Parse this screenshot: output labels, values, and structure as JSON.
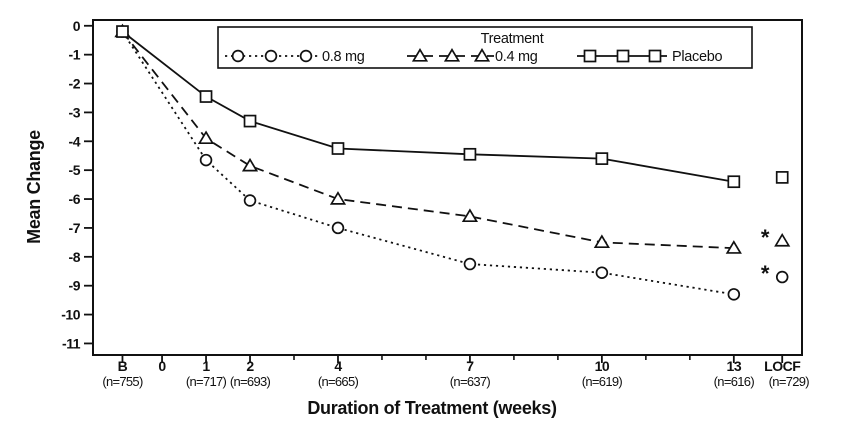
{
  "chart_data": {
    "type": "line",
    "title": "",
    "xlabel": "Duration of Treatment (weeks)",
    "ylabel": "Mean Change",
    "background": "#ffffff",
    "line_color": "#000000",
    "grid": false,
    "ylim": [
      -11.4,
      0.2
    ],
    "y_ticks": [
      0,
      -1,
      -2,
      -3,
      -4,
      -5,
      -6,
      -7,
      -8,
      -9,
      -10,
      -11
    ],
    "x_tick_labels": [
      "B",
      "0",
      "1",
      "2",
      "4",
      "7",
      "10",
      "13",
      "LOCF"
    ],
    "x_tick_weeks": [
      -0.9,
      0,
      1,
      2,
      4,
      7,
      10,
      13,
      14.1
    ],
    "x_minor_tick_weeks": [
      3,
      5,
      6,
      8,
      9,
      11,
      12
    ],
    "n_labels": [
      "(n=755)",
      "(n=717)",
      "(n=693)",
      "(n=665)",
      "(n=637)",
      "(n=619)",
      "(n=616)",
      "(n=729)"
    ],
    "n_label_weeks": [
      -0.9,
      1,
      2,
      4,
      7,
      10,
      13,
      14.25
    ],
    "asterisk_glyph": "*",
    "legend": {
      "title": "Treatment",
      "position": "top-center",
      "entries": [
        "0.8 mg",
        "0.4 mg",
        "Placebo"
      ]
    },
    "series": [
      {
        "name": "0.8 mg",
        "marker": "circle",
        "line_style": "dotted",
        "dash": "2.2,3.8",
        "x_labels": [
          "B",
          "1",
          "2",
          "4",
          "7",
          "10",
          "13"
        ],
        "weeks": [
          -0.9,
          1,
          2,
          4,
          7,
          10,
          13
        ],
        "values": [
          -0.2,
          -4.65,
          -6.05,
          -7.0,
          -8.25,
          -8.55,
          -9.3
        ],
        "locf": {
          "label": "LOCF",
          "week": 14.1,
          "value": -8.7,
          "asterisk": true
        }
      },
      {
        "name": "0.4 mg",
        "marker": "triangle",
        "line_style": "dashed",
        "dash": "10,6",
        "x_labels": [
          "B",
          "1",
          "2",
          "4",
          "7",
          "10",
          "13"
        ],
        "weeks": [
          -0.9,
          1,
          2,
          4,
          7,
          10,
          13
        ],
        "values": [
          -0.2,
          -3.9,
          -4.85,
          -6.0,
          -6.6,
          -7.5,
          -7.7
        ],
        "locf": {
          "label": "LOCF",
          "week": 14.1,
          "value": -7.45,
          "asterisk": true
        }
      },
      {
        "name": "Placebo",
        "marker": "square",
        "line_style": "solid",
        "dash": "",
        "x_labels": [
          "B",
          "1",
          "2",
          "4",
          "7",
          "10",
          "13"
        ],
        "weeks": [
          -0.9,
          1,
          2,
          4,
          7,
          10,
          13
        ],
        "values": [
          -0.2,
          -2.45,
          -3.3,
          -4.25,
          -4.45,
          -4.6,
          -5.4
        ],
        "locf": {
          "label": "LOCF",
          "week": 14.1,
          "value": -5.25,
          "asterisk": false
        }
      }
    ]
  }
}
